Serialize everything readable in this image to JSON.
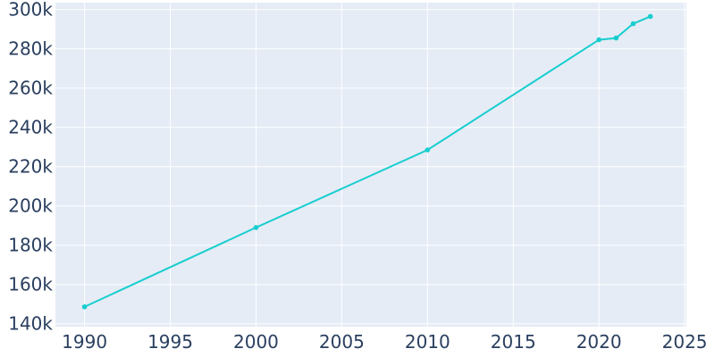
{
  "chart_data": {
    "type": "line",
    "title": "",
    "xlabel": "",
    "ylabel": "",
    "x": [
      1990,
      2000,
      2010,
      2020,
      2021,
      2022,
      2023
    ],
    "series": [
      {
        "values": [
          148600,
          189000,
          228500,
          284600,
          285500,
          292800,
          296500
        ]
      }
    ],
    "xlim": [
      1988.3,
      2025.1
    ],
    "ylim": [
      138500,
      303500
    ],
    "xticks": [
      1990,
      1995,
      2000,
      2005,
      2010,
      2015,
      2020,
      2025
    ],
    "xtick_labels": [
      "1990",
      "1995",
      "2000",
      "2005",
      "2010",
      "2015",
      "2020",
      "2025"
    ],
    "yticks": [
      140000,
      160000,
      180000,
      200000,
      220000,
      240000,
      260000,
      280000,
      300000
    ],
    "ytick_labels": [
      "140k",
      "160k",
      "180k",
      "200k",
      "220k",
      "240k",
      "260k",
      "280k",
      "300k"
    ],
    "grid": true,
    "colors": {
      "line": "#17cecf",
      "plot_bg": "#e5ecf6",
      "grid": "#ffffff",
      "tick_text": "#2a3f5f"
    }
  }
}
